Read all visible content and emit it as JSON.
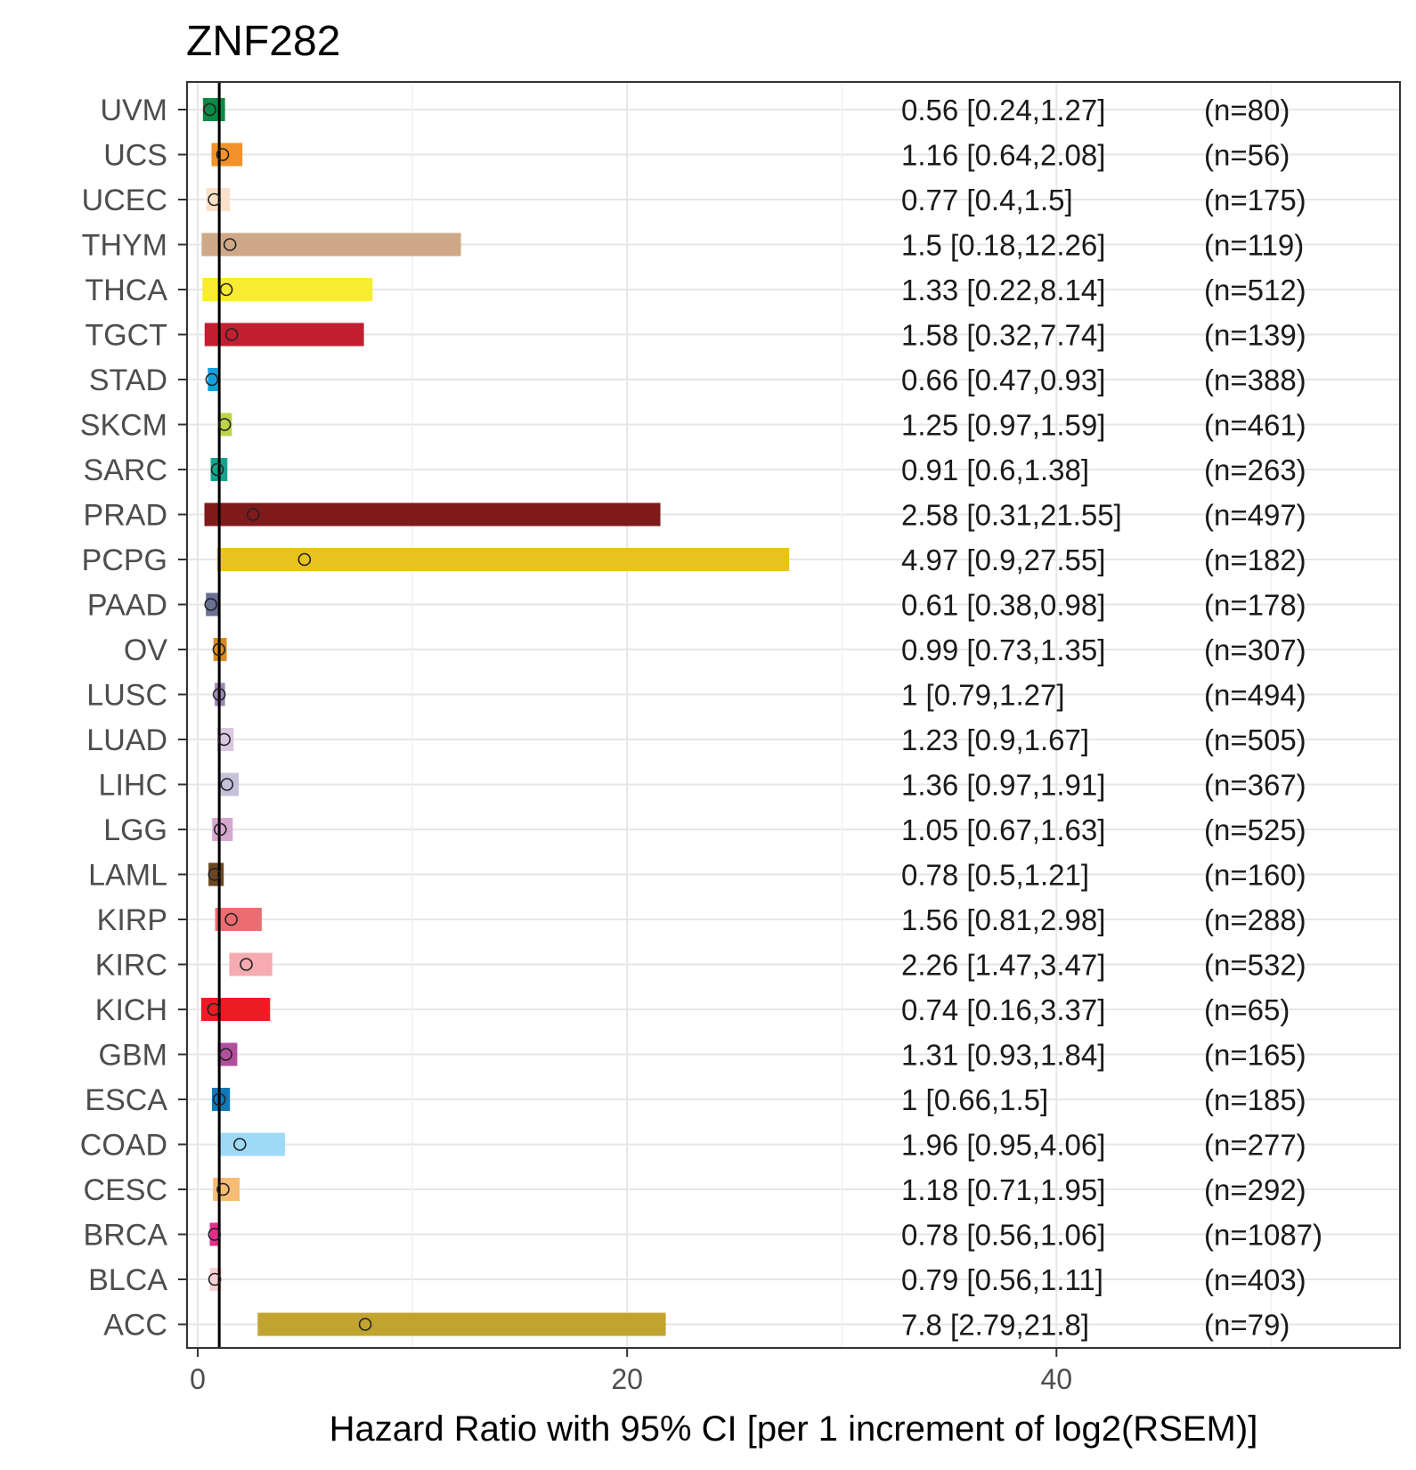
{
  "chart_data": {
    "type": "bar",
    "title": "ZNF282",
    "xlabel": "Hazard Ratio with 95% CI [per 1 increment of log2(RSEM)]",
    "ylabel": "",
    "xlim": [
      -0.5,
      56
    ],
    "xticks": [
      0,
      20,
      40
    ],
    "grid": true,
    "reference_line": 1,
    "rows": [
      {
        "category": "UVM",
        "hr": 0.56,
        "low": 0.24,
        "high": 1.27,
        "ci_text": "0.56 [0.24,1.27]",
        "n_text": "(n=80)",
        "color": "#0c8a45"
      },
      {
        "category": "UCS",
        "hr": 1.16,
        "low": 0.64,
        "high": 2.08,
        "ci_text": "1.16 [0.64,2.08]",
        "n_text": "(n=56)",
        "color": "#f2922c"
      },
      {
        "category": "UCEC",
        "hr": 0.77,
        "low": 0.4,
        "high": 1.5,
        "ci_text": "0.77 [0.4,1.5]",
        "n_text": "(n=175)",
        "color": "#fde0c9"
      },
      {
        "category": "THYM",
        "hr": 1.5,
        "low": 0.18,
        "high": 12.26,
        "ci_text": "1.5 [0.18,12.26]",
        "n_text": "(n=119)",
        "color": "#cfa987"
      },
      {
        "category": "THCA",
        "hr": 1.33,
        "low": 0.22,
        "high": 8.14,
        "ci_text": "1.33 [0.22,8.14]",
        "n_text": "(n=512)",
        "color": "#f7ec31"
      },
      {
        "category": "TGCT",
        "hr": 1.58,
        "low": 0.32,
        "high": 7.74,
        "ci_text": "1.58 [0.32,7.74]",
        "n_text": "(n=139)",
        "color": "#c11f30"
      },
      {
        "category": "STAD",
        "hr": 0.66,
        "low": 0.47,
        "high": 0.93,
        "ci_text": "0.66 [0.47,0.93]",
        "n_text": "(n=388)",
        "color": "#15a0dd"
      },
      {
        "category": "SKCM",
        "hr": 1.25,
        "low": 0.97,
        "high": 1.59,
        "ci_text": "1.25 [0.97,1.59]",
        "n_text": "(n=461)",
        "color": "#bdd44a"
      },
      {
        "category": "SARC",
        "hr": 0.91,
        "low": 0.6,
        "high": 1.38,
        "ci_text": "0.91 [0.6,1.38]",
        "n_text": "(n=263)",
        "color": "#13a58c"
      },
      {
        "category": "PRAD",
        "hr": 2.58,
        "low": 0.31,
        "high": 21.55,
        "ci_text": "2.58 [0.31,21.55]",
        "n_text": "(n=497)",
        "color": "#7f1a1c"
      },
      {
        "category": "PCPG",
        "hr": 4.97,
        "low": 0.9,
        "high": 27.55,
        "ci_text": "4.97 [0.9,27.55]",
        "n_text": "(n=182)",
        "color": "#e8c31e"
      },
      {
        "category": "PAAD",
        "hr": 0.61,
        "low": 0.38,
        "high": 0.98,
        "ci_text": "0.61 [0.38,0.98]",
        "n_text": "(n=178)",
        "color": "#6b7095"
      },
      {
        "category": "OV",
        "hr": 0.99,
        "low": 0.73,
        "high": 1.35,
        "ci_text": "0.99 [0.73,1.35]",
        "n_text": "(n=307)",
        "color": "#d88b24"
      },
      {
        "category": "LUSC",
        "hr": 1.0,
        "low": 0.79,
        "high": 1.27,
        "ci_text": "1 [0.79,1.27]",
        "n_text": "(n=494)",
        "color": "#9f87b3"
      },
      {
        "category": "LUAD",
        "hr": 1.23,
        "low": 0.9,
        "high": 1.67,
        "ci_text": "1.23 [0.9,1.67]",
        "n_text": "(n=505)",
        "color": "#d9c8df"
      },
      {
        "category": "LIHC",
        "hr": 1.36,
        "low": 0.97,
        "high": 1.91,
        "ci_text": "1.36 [0.97,1.91]",
        "n_text": "(n=367)",
        "color": "#c4c1d9"
      },
      {
        "category": "LGG",
        "hr": 1.05,
        "low": 0.67,
        "high": 1.63,
        "ci_text": "1.05 [0.67,1.63]",
        "n_text": "(n=525)",
        "color": "#d6a8cf"
      },
      {
        "category": "LAML",
        "hr": 0.78,
        "low": 0.5,
        "high": 1.21,
        "ci_text": "0.78 [0.5,1.21]",
        "n_text": "(n=160)",
        "color": "#6a4622"
      },
      {
        "category": "KIRP",
        "hr": 1.56,
        "low": 0.81,
        "high": 2.98,
        "ci_text": "1.56 [0.81,2.98]",
        "n_text": "(n=288)",
        "color": "#ec6d71"
      },
      {
        "category": "KIRC",
        "hr": 2.26,
        "low": 1.47,
        "high": 3.47,
        "ci_text": "2.26 [1.47,3.47]",
        "n_text": "(n=532)",
        "color": "#f6abb1"
      },
      {
        "category": "KICH",
        "hr": 0.74,
        "low": 0.16,
        "high": 3.37,
        "ci_text": "0.74 [0.16,3.37]",
        "n_text": "(n=65)",
        "color": "#ed1c24"
      },
      {
        "category": "GBM",
        "hr": 1.31,
        "low": 0.93,
        "high": 1.84,
        "ci_text": "1.31 [0.93,1.84]",
        "n_text": "(n=165)",
        "color": "#b14f9d"
      },
      {
        "category": "ESCA",
        "hr": 1.0,
        "low": 0.66,
        "high": 1.5,
        "ci_text": "1 [0.66,1.5]",
        "n_text": "(n=185)",
        "color": "#1279b8"
      },
      {
        "category": "COAD",
        "hr": 1.96,
        "low": 0.95,
        "high": 4.06,
        "ci_text": "1.96 [0.95,4.06]",
        "n_text": "(n=277)",
        "color": "#9ed9f7"
      },
      {
        "category": "CESC",
        "hr": 1.18,
        "low": 0.71,
        "high": 1.95,
        "ci_text": "1.18 [0.71,1.95]",
        "n_text": "(n=292)",
        "color": "#f7bb73"
      },
      {
        "category": "BRCA",
        "hr": 0.78,
        "low": 0.56,
        "high": 1.06,
        "ci_text": "0.78 [0.56,1.06]",
        "n_text": "(n=1087)",
        "color": "#e62d8b"
      },
      {
        "category": "BLCA",
        "hr": 0.79,
        "low": 0.56,
        "high": 1.11,
        "ci_text": "0.79 [0.56,1.11]",
        "n_text": "(n=403)",
        "color": "#fad2d2"
      },
      {
        "category": "ACC",
        "hr": 7.8,
        "low": 2.79,
        "high": 21.8,
        "ci_text": "7.8 [2.79,21.8]",
        "n_text": "(n=79)",
        "color": "#c1a42f"
      }
    ]
  }
}
